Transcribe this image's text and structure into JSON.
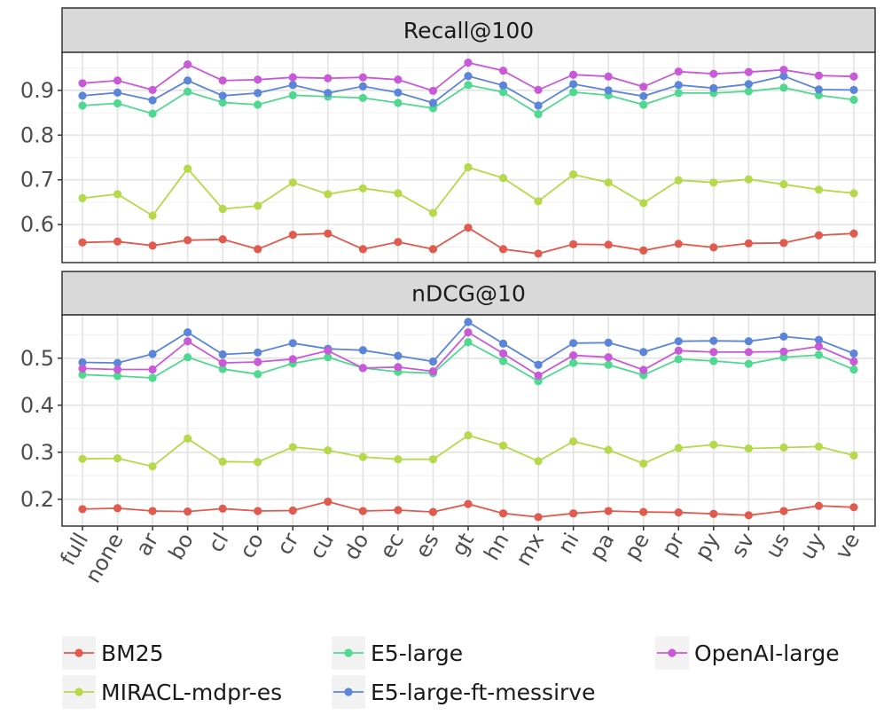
{
  "chart_data": {
    "type": "line",
    "x": [
      "full",
      "none",
      "ar",
      "bo",
      "cl",
      "co",
      "cr",
      "cu",
      "do",
      "ec",
      "es",
      "gt",
      "hn",
      "mx",
      "ni",
      "pa",
      "pe",
      "pr",
      "py",
      "sv",
      "us",
      "uy",
      "ve"
    ],
    "series_names": [
      "BM25",
      "MIRACL-mdpr-es",
      "E5-large",
      "E5-large-ft-messirve",
      "OpenAI-large"
    ],
    "colors": {
      "BM25": "#e05a4e",
      "MIRACL-mdpr-es": "#b5d94a",
      "E5-large": "#4fd88f",
      "E5-large-ft-messirve": "#5b85d9",
      "OpenAI-large": "#c85ad8"
    },
    "legend_position": "bottom",
    "grid": true,
    "panels": [
      {
        "title": "Recall@100",
        "ylim": [
          0.515,
          0.985
        ],
        "yticks": [
          0.6,
          0.7,
          0.8,
          0.9
        ],
        "ytick_labels": [
          "0.6",
          "0.7",
          "0.8",
          "0.9"
        ],
        "series": [
          {
            "name": "BM25",
            "values": [
              0.56,
              0.562,
              0.553,
              0.565,
              0.567,
              0.545,
              0.577,
              0.58,
              0.545,
              0.561,
              0.545,
              0.593,
              0.545,
              0.535,
              0.556,
              0.555,
              0.542,
              0.557,
              0.549,
              0.558,
              0.559,
              0.576,
              0.58
            ]
          },
          {
            "name": "MIRACL-mdpr-es",
            "values": [
              0.659,
              0.668,
              0.62,
              0.725,
              0.635,
              0.642,
              0.694,
              0.668,
              0.681,
              0.67,
              0.626,
              0.728,
              0.704,
              0.652,
              0.712,
              0.694,
              0.648,
              0.699,
              0.694,
              0.701,
              0.69,
              0.678,
              0.67
            ]
          },
          {
            "name": "E5-large",
            "values": [
              0.866,
              0.871,
              0.848,
              0.897,
              0.873,
              0.868,
              0.889,
              0.886,
              0.883,
              0.872,
              0.86,
              0.912,
              0.896,
              0.847,
              0.896,
              0.889,
              0.868,
              0.894,
              0.894,
              0.898,
              0.906,
              0.889,
              0.879
            ]
          },
          {
            "name": "E5-large-ft-messirve",
            "values": [
              0.888,
              0.895,
              0.878,
              0.922,
              0.888,
              0.894,
              0.912,
              0.894,
              0.909,
              0.895,
              0.872,
              0.932,
              0.911,
              0.866,
              0.914,
              0.9,
              0.887,
              0.912,
              0.905,
              0.914,
              0.932,
              0.902,
              0.901
            ]
          },
          {
            "name": "OpenAI-large",
            "values": [
              0.916,
              0.922,
              0.901,
              0.958,
              0.922,
              0.924,
              0.929,
              0.927,
              0.929,
              0.924,
              0.899,
              0.962,
              0.944,
              0.901,
              0.935,
              0.931,
              0.908,
              0.942,
              0.937,
              0.941,
              0.946,
              0.933,
              0.931
            ]
          }
        ]
      },
      {
        "title": "nDCG@10",
        "ylim": [
          0.143,
          0.592
        ],
        "yticks": [
          0.2,
          0.3,
          0.4,
          0.5
        ],
        "ytick_labels": [
          "0.2",
          "0.3",
          "0.4",
          "0.5"
        ],
        "series": [
          {
            "name": "BM25",
            "values": [
              0.179,
              0.181,
              0.175,
              0.174,
              0.18,
              0.175,
              0.176,
              0.195,
              0.175,
              0.177,
              0.173,
              0.19,
              0.17,
              0.162,
              0.17,
              0.175,
              0.173,
              0.172,
              0.169,
              0.166,
              0.175,
              0.186,
              0.183
            ]
          },
          {
            "name": "MIRACL-mdpr-es",
            "values": [
              0.286,
              0.287,
              0.27,
              0.329,
              0.28,
              0.279,
              0.311,
              0.304,
              0.29,
              0.285,
              0.285,
              0.336,
              0.314,
              0.281,
              0.323,
              0.305,
              0.276,
              0.309,
              0.316,
              0.308,
              0.31,
              0.312,
              0.293
            ]
          },
          {
            "name": "E5-large",
            "values": [
              0.465,
              0.462,
              0.458,
              0.502,
              0.477,
              0.466,
              0.489,
              0.502,
              0.479,
              0.471,
              0.468,
              0.534,
              0.494,
              0.451,
              0.49,
              0.486,
              0.464,
              0.498,
              0.494,
              0.488,
              0.502,
              0.507,
              0.476
            ]
          },
          {
            "name": "E5-large-ft-messirve",
            "values": [
              0.491,
              0.49,
              0.509,
              0.555,
              0.508,
              0.512,
              0.532,
              0.52,
              0.517,
              0.505,
              0.493,
              0.577,
              0.531,
              0.486,
              0.532,
              0.533,
              0.513,
              0.536,
              0.537,
              0.536,
              0.546,
              0.539,
              0.51
            ]
          },
          {
            "name": "OpenAI-large",
            "values": [
              0.478,
              0.476,
              0.476,
              0.536,
              0.49,
              0.492,
              0.498,
              0.516,
              0.479,
              0.481,
              0.472,
              0.555,
              0.51,
              0.463,
              0.506,
              0.502,
              0.475,
              0.516,
              0.513,
              0.513,
              0.514,
              0.525,
              0.493
            ]
          }
        ]
      }
    ]
  }
}
